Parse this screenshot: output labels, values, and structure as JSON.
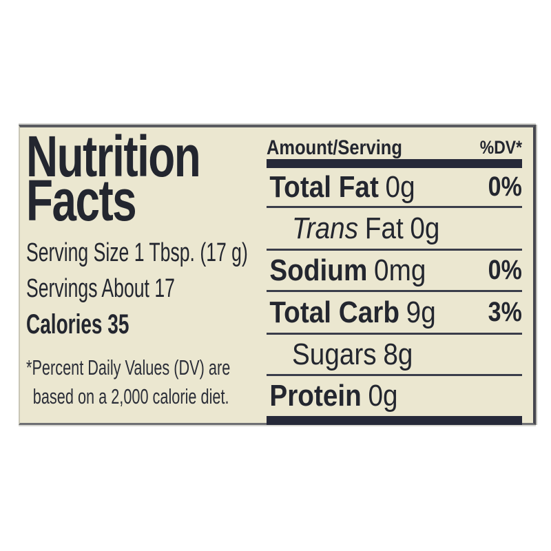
{
  "colors": {
    "page_background": "#ffffff",
    "label_background": "#ebe7d0",
    "ink": "#23262f",
    "rule": "#3a3d4a",
    "thick_bar": "#262939"
  },
  "left_panel": {
    "title_line1": "Nutrition",
    "title_line2": "Facts",
    "serving_size": "Serving Size 1 Tbsp. (17 g)",
    "servings": "Servings About 17",
    "calories": "Calories 35",
    "footnote_line1": "*Percent Daily Values (DV) are",
    "footnote_line2": "based on a 2,000 calorie diet."
  },
  "table": {
    "header": {
      "amount": "Amount/Serving",
      "dv": "%DV*"
    },
    "rows": [
      {
        "name": "Total Fat",
        "value": "0g",
        "dv": "0%"
      },
      {
        "name_italic": "Trans",
        "name_rest": "Fat",
        "value": "0g",
        "dv": ""
      },
      {
        "name": "Sodium",
        "value": "0mg",
        "dv": "0%"
      },
      {
        "name": "Total Carb",
        "value": "9g",
        "dv": "3%"
      },
      {
        "name": "Sugars",
        "value": "8g",
        "dv": ""
      },
      {
        "name": "Protein",
        "value": "0g",
        "dv": ""
      }
    ]
  }
}
